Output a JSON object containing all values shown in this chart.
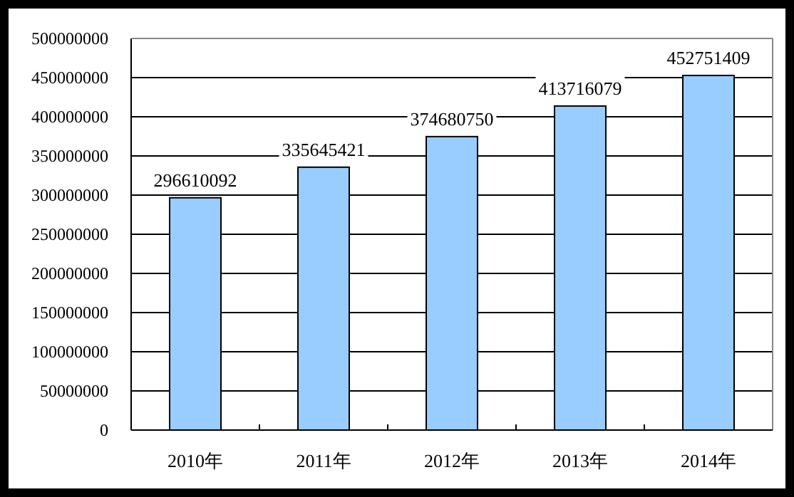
{
  "chart_data": {
    "type": "bar",
    "categories": [
      "2010年",
      "2011年",
      "2012年",
      "2013年",
      "2014年"
    ],
    "values": [
      296610092,
      335645421,
      374680750,
      413716079,
      452751409
    ],
    "color": "#99ccff",
    "ylim": [
      0,
      500000000
    ],
    "yticks": [
      0,
      50000000,
      100000000,
      150000000,
      200000000,
      250000000,
      300000000,
      350000000,
      400000000,
      450000000,
      500000000
    ],
    "grid": "y",
    "data_labels": true
  }
}
